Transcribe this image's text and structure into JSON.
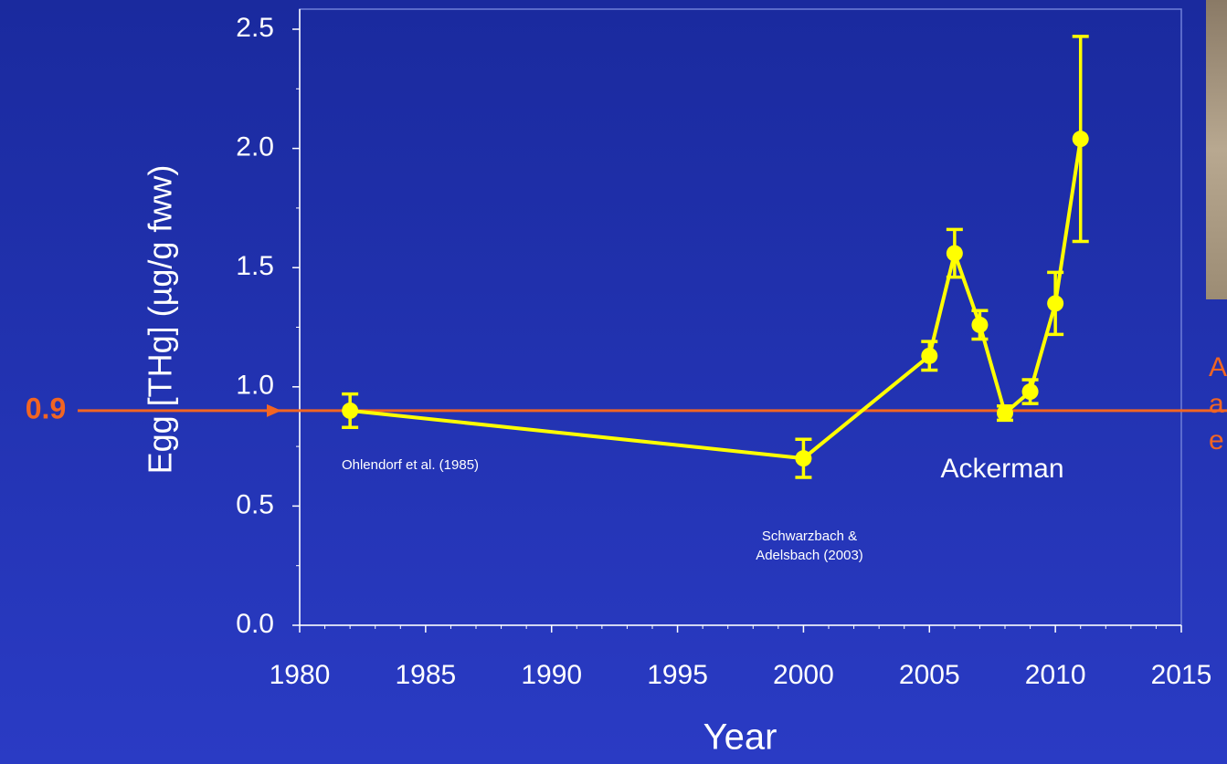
{
  "chart_data": {
    "type": "line",
    "x_label": "Year",
    "y_label": "Egg [THg] (µg/g fww)",
    "x": [
      1982,
      2000,
      2005,
      2006,
      2007,
      2008,
      2009,
      2010,
      2011
    ],
    "series": [
      {
        "color": "#ffff00",
        "values": [
          0.9,
          0.7,
          1.13,
          1.56,
          1.26,
          0.89,
          0.98,
          1.35,
          2.04
        ],
        "errors": [
          0.07,
          0.08,
          0.06,
          0.1,
          0.06,
          0.03,
          0.05,
          0.13,
          0.43
        ]
      }
    ],
    "xlim": [
      1980,
      2015
    ],
    "xticks": [
      1980,
      1985,
      1990,
      1995,
      2000,
      2005,
      2010,
      2015
    ],
    "xminorticks": [
      1981,
      1982,
      1983,
      1984,
      1986,
      1987,
      1988,
      1989,
      1991,
      1992,
      1993,
      1994,
      1996,
      1997,
      1998,
      1999,
      2001,
      2002,
      2003,
      2004,
      2006,
      2007,
      2008,
      2009,
      2011,
      2012,
      2013,
      2014
    ],
    "ylim": [
      0,
      2.5
    ],
    "yticks": [
      {
        "value": 0,
        "label": "0.0"
      },
      0.5,
      {
        "value": 1,
        "label": "1.0"
      },
      1.5,
      {
        "value": 2,
        "label": "2.0"
      },
      2.5
    ],
    "yminorticks": [
      0.25,
      0.75,
      1.25,
      1.75,
      2.25
    ],
    "reference_line": {
      "value": 0.9,
      "color": "#f26522"
    },
    "annotations": [
      {
        "text": "Ohlendorf et al. (1985)"
      },
      {
        "text": "Schwarzbach &"
      },
      {
        "text": "Adelsbach (2003)"
      },
      {
        "text": "Ackerman"
      }
    ],
    "side_text": [
      "A",
      "a",
      "e"
    ]
  }
}
